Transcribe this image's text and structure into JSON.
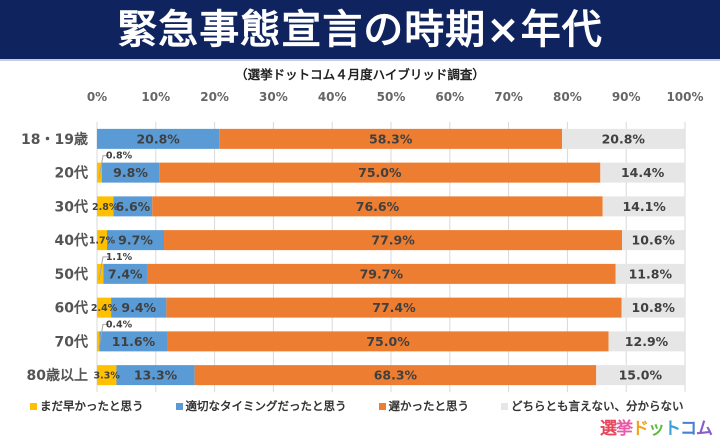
{
  "header": {
    "title": "緊急事態宣言の時期×年代",
    "subtitle": "（選挙ドットコム４月度ハイブリッド調査）"
  },
  "logo": {
    "text": "選挙ドットコム",
    "colors": [
      "#e8455a",
      "#e85aa5",
      "#f3a21c",
      "#5fba46",
      "#3aa0d8",
      "#4a7fd1",
      "#8a5cc9"
    ]
  },
  "colors": {
    "early": "#ffc000",
    "timely": "#5b9bd5",
    "late": "#ed7d31",
    "unknown": "#e6e6e6",
    "banner": "#0f235f"
  },
  "chart_data": {
    "type": "bar",
    "orientation": "horizontal",
    "stacked": "percent",
    "title": "緊急事態宣言の時期×年代",
    "subtitle": "（選挙ドットコム４月度ハイブリッド調査）",
    "categories": [
      "18・19歳",
      "20代",
      "30代",
      "40代",
      "50代",
      "60代",
      "70代",
      "80歳以上"
    ],
    "xlim": [
      0,
      100
    ],
    "xticks": [
      "0%",
      "10%",
      "20%",
      "30%",
      "40%",
      "50%",
      "60%",
      "70%",
      "80%",
      "90%",
      "100%"
    ],
    "grid": true,
    "legend_position": "bottom",
    "series": [
      {
        "key": "early",
        "name": "まだ早かったと思う",
        "values": [
          0,
          0.8,
          2.8,
          1.7,
          1.1,
          2.4,
          0.4,
          3.3
        ],
        "labels": [
          "",
          "0.8%",
          "2.8%",
          "1.7%",
          "1.1%",
          "2.4%",
          "0.4%",
          "3.3%"
        ]
      },
      {
        "key": "timely",
        "name": "適切なタイミングだったと思う",
        "values": [
          20.8,
          9.8,
          6.6,
          9.7,
          7.4,
          9.4,
          11.6,
          13.3
        ],
        "labels": [
          "20.8%",
          "9.8%",
          "6.6%",
          "9.7%",
          "7.4%",
          "9.4%",
          "11.6%",
          "13.3%"
        ]
      },
      {
        "key": "late",
        "name": "遅かったと思う",
        "values": [
          58.3,
          75.0,
          76.6,
          77.9,
          79.7,
          77.4,
          75.0,
          68.3
        ],
        "labels": [
          "58.3%",
          "75.0%",
          "76.6%",
          "77.9%",
          "79.7%",
          "77.4%",
          "75.0%",
          "68.3%"
        ]
      },
      {
        "key": "unknown",
        "name": "どちらとも言えない、分からない",
        "values": [
          20.8,
          14.4,
          14.1,
          10.6,
          11.8,
          10.8,
          12.9,
          15.0
        ],
        "labels": [
          "20.8%",
          "14.4%",
          "14.1%",
          "10.6%",
          "11.8%",
          "10.8%",
          "12.9%",
          "15.0%"
        ]
      }
    ]
  }
}
